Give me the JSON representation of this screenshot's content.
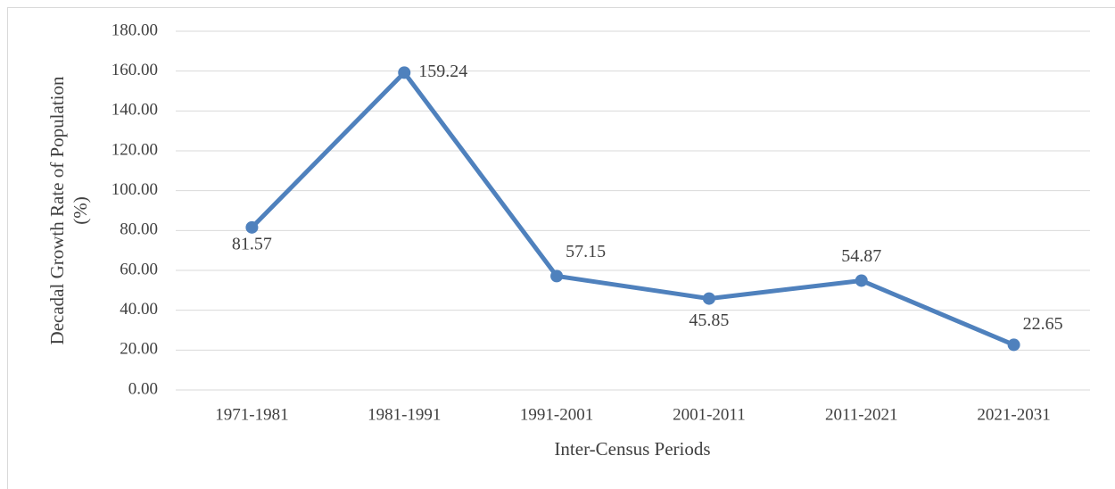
{
  "chart_data": {
    "type": "line",
    "xlabel": "Inter-Census Periods",
    "ylabel": [
      "Decadal Growth  Rate of Population",
      "(%)"
    ],
    "categories": [
      "1971-1981",
      "1981-1991",
      "1991-2001",
      "2001-2011",
      "2011-2021",
      "2021-2031"
    ],
    "series": [
      {
        "color": "#4f81bd",
        "values": [
          81.57,
          159.24,
          57.15,
          45.85,
          54.87,
          22.65
        ]
      }
    ],
    "ylim": [
      0,
      180
    ],
    "yticks": [
      {
        "value": 0,
        "label": "0.00"
      },
      {
        "value": 20,
        "label": "20.00"
      },
      {
        "value": 40,
        "label": "40.00"
      },
      {
        "value": 60,
        "label": "60.00"
      },
      {
        "value": 80,
        "label": "80.00"
      },
      {
        "value": 100,
        "label": "100.00"
      },
      {
        "value": 120,
        "label": "120.00"
      },
      {
        "value": 140,
        "label": "140.00"
      },
      {
        "value": 160,
        "label": "160.00"
      },
      {
        "value": 180,
        "label": "180.00"
      }
    ],
    "grid": true
  }
}
